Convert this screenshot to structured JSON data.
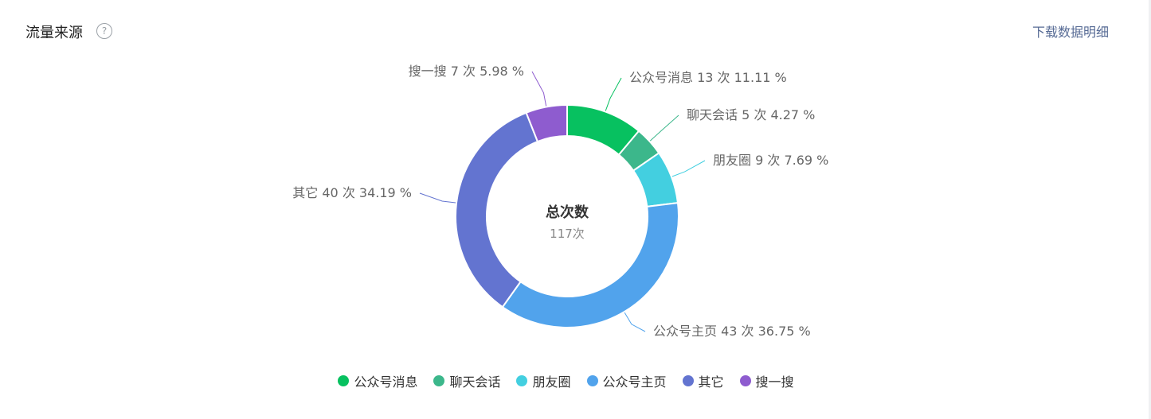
{
  "header": {
    "title": "流量来源",
    "help_icon": "question-circle-icon",
    "download_label": "下载数据明细"
  },
  "center": {
    "title": "总次数",
    "value": "117次"
  },
  "chart_data": {
    "type": "pie",
    "variant": "donut",
    "total": 117,
    "unit": "次",
    "slices": [
      {
        "name": "公众号消息",
        "value": 13,
        "percent": 11.11,
        "label": "公众号消息 13 次 11.11 %",
        "color": "#07c160"
      },
      {
        "name": "聊天会话",
        "value": 5,
        "percent": 4.27,
        "label": "聊天会话 5 次 4.27 %",
        "color": "#3cb78b"
      },
      {
        "name": "朋友圈",
        "value": 9,
        "percent": 7.69,
        "label": "朋友圈 9 次 7.69 %",
        "color": "#43cfe0"
      },
      {
        "name": "公众号主页",
        "value": 43,
        "percent": 36.75,
        "label": "公众号主页 43 次 36.75 %",
        "color": "#51a3ec"
      },
      {
        "name": "其它",
        "value": 40,
        "percent": 34.19,
        "label": "其它 40 次 34.19 %",
        "color": "#6374d0"
      },
      {
        "name": "搜一搜",
        "value": 7,
        "percent": 5.98,
        "label": "搜一搜 7 次 5.98 %",
        "color": "#8e5ccf"
      }
    ],
    "legend_position": "bottom"
  }
}
